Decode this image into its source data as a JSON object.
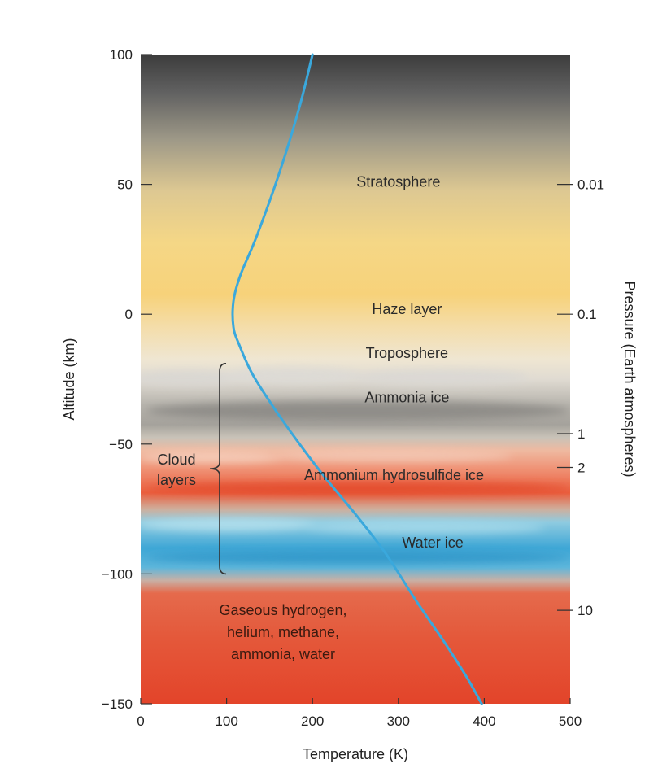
{
  "chart_data": {
    "type": "line",
    "xlabel": "Temperature (K)",
    "ylabel": "Altitude (km)",
    "y2label": "Pressure (Earth atmospheres)",
    "xlim": [
      0,
      500
    ],
    "ylim": [
      -150,
      100
    ],
    "x_ticks": [
      "0",
      "100",
      "200",
      "300",
      "400",
      "500"
    ],
    "y_ticks": [
      "100",
      "50",
      "0",
      "−50",
      "−100",
      "−150"
    ],
    "pressure_ticks": [
      {
        "label": "0.01",
        "altitude": 50
      },
      {
        "label": "0.1",
        "altitude": 0
      },
      {
        "label": "1",
        "altitude": -46
      },
      {
        "label": "2",
        "altitude": -59
      },
      {
        "label": "10",
        "altitude": -114
      }
    ],
    "series": [
      {
        "color": "#3aa8dc",
        "points": [
          [
            200,
            100
          ],
          [
            185,
            80
          ],
          [
            162,
            55
          ],
          [
            135,
            30
          ],
          [
            116,
            15
          ],
          [
            108,
            5
          ],
          [
            108,
            -5
          ],
          [
            115,
            -12
          ],
          [
            130,
            -23
          ],
          [
            155,
            -36
          ],
          [
            185,
            -50
          ],
          [
            215,
            -63
          ],
          [
            250,
            -77
          ],
          [
            285,
            -92
          ],
          [
            320,
            -110
          ],
          [
            355,
            -127
          ],
          [
            380,
            -140
          ],
          [
            397,
            -150
          ]
        ]
      }
    ],
    "layers": [
      {
        "label": "Stratosphere",
        "altitude": 51,
        "temperature": 300
      },
      {
        "label": "Haze layer",
        "altitude": 2,
        "temperature": 310
      },
      {
        "label": "Troposphere",
        "altitude": -15,
        "temperature": 310
      },
      {
        "label": "Ammonia ice",
        "altitude": -32,
        "temperature": 310
      },
      {
        "label": "Ammonium hydrosulfide ice",
        "altitude": -62,
        "temperature": 295
      },
      {
        "label": "Water ice",
        "altitude": -88,
        "temperature": 340
      }
    ],
    "cloud_bracket": {
      "label_lines": [
        "Cloud",
        "layers"
      ],
      "from_altitude": -19,
      "to_altitude": -100
    },
    "deep_atmosphere": {
      "lines": [
        "Gaseous hydrogen,",
        "helium, methane,",
        "ammonia, water"
      ]
    }
  }
}
